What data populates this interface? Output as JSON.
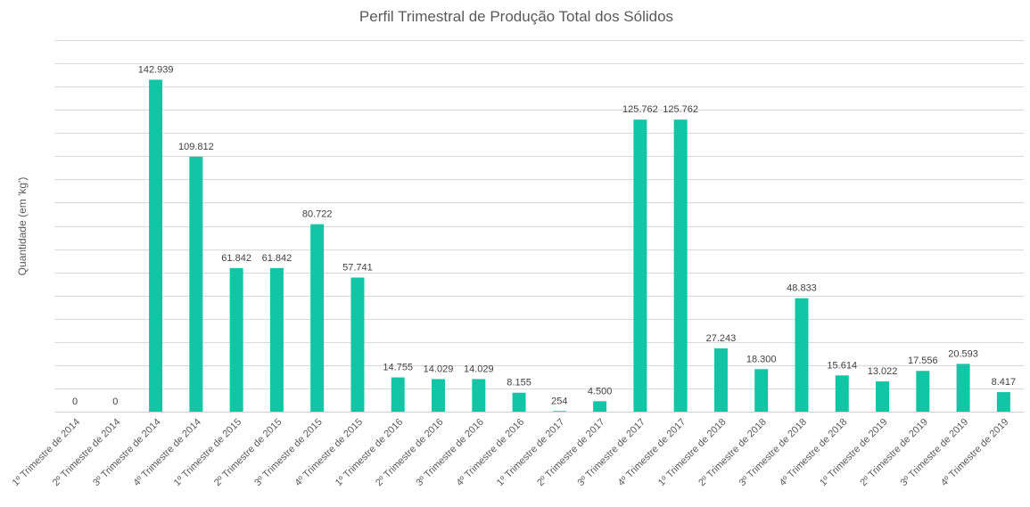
{
  "chart_data": {
    "type": "bar",
    "title": "Perfil Trimestral de Produção Total dos Sólidos",
    "xlabel": "",
    "ylabel": "Quantidade (em 'kg')",
    "ylim": [
      0,
      160000
    ],
    "ytick_step": 10000,
    "y_tick_labels_shown": false,
    "grid": true,
    "bar_color": "#12c5a5",
    "categories": [
      "1º Trimestre de 2014",
      "2º Trimestre de 2014",
      "3º Trimestre de 2014",
      "4º Trimestre de 2014",
      "1º Trimestre de 2015",
      "2º Trimestre de 2015",
      "3º Trimestre de 2015",
      "4º Trimestre de 2015",
      "1º Trimestre de 2016",
      "2º Trimestre de 2016",
      "3º Trimestre de 2016",
      "4º Trimestre de 2016",
      "1º Trimestre de 2017",
      "2º Trimestre de 2017",
      "3º Trimestre de 2017",
      "4º Trimestre de 2017",
      "1º Trimestre de 2018",
      "2º Trimestre de 2018",
      "3º Trimestre de 2018",
      "4º Trimestre de 2018",
      "1º Trimestre de 2019",
      "2º Trimestre de 2019",
      "3º Trimestre de 2019",
      "4º Trimestre de 2019"
    ],
    "values": [
      0,
      0,
      142939,
      109812,
      61842,
      61842,
      80722,
      57741,
      14755,
      14029,
      14029,
      8155,
      254,
      4500,
      125762,
      125762,
      27243,
      18300,
      48833,
      15614,
      13022,
      17556,
      20593,
      8417
    ],
    "data_labels": [
      "0",
      "0",
      "142.939",
      "109.812",
      "61.842",
      "61.842",
      "80.722",
      "57.741",
      "14.755",
      "14.029",
      "14.029",
      "8.155",
      "254",
      "4.500",
      "125.762",
      "125.762",
      "27.243",
      "18.300",
      "48.833",
      "15.614",
      "13.022",
      "17.556",
      "20.593",
      "8.417"
    ]
  }
}
